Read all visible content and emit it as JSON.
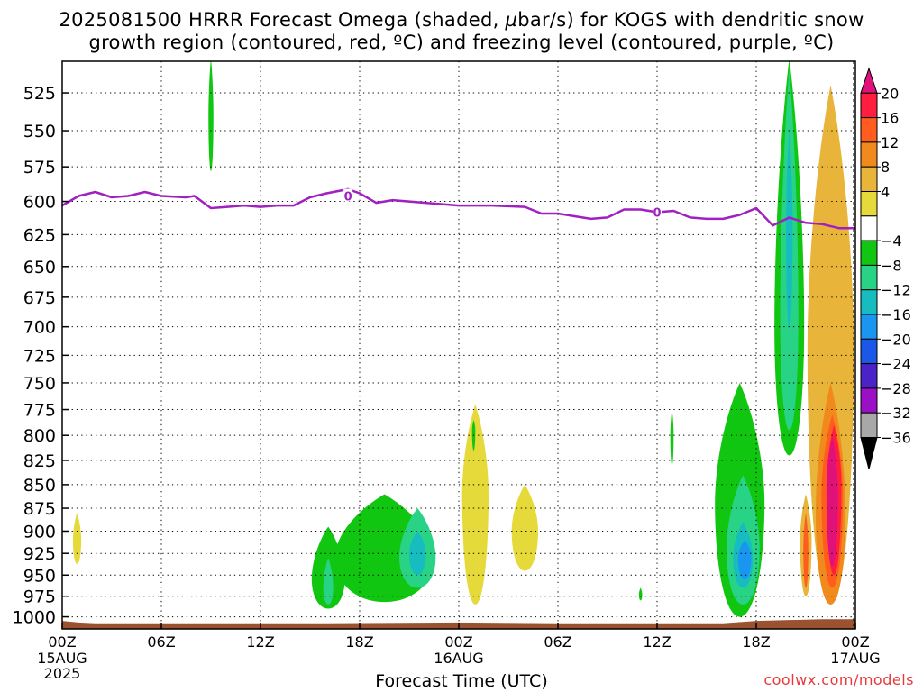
{
  "title": {
    "line1_pre": "2025081500 HRRR Forecast Omega (shaded, ",
    "line1_mu": "µ",
    "line1_post": "bar/s) for KOGS with dendritic snow",
    "line2": "growth region (contoured, red, ºC) and freezing level (contoured, purple, ºC)"
  },
  "xlabel": "Forecast Time (UTC)",
  "credit": "coolwx.com/models",
  "colors": {
    "freezing_level": "#a020c0",
    "terrain": "#9c5230",
    "grid": "#000000"
  },
  "chart_data": {
    "type": "heatmap",
    "title": "2025081500 HRRR Forecast Omega (shaded, µbar/s) for KOGS with dendritic snow growth region (contoured, red, ºC) and freezing level (contoured, purple, ºC)",
    "xlabel": "Forecast Time (UTC)",
    "ylabel": "",
    "x_unit": "forecast hour",
    "xlim": [
      0,
      48
    ],
    "ylim": [
      1015,
      505
    ],
    "y_scale": "log-pressure (inverted)",
    "grid": true,
    "x_ticks": [
      {
        "hour": 0,
        "label": "00Z",
        "sub": [
          "15AUG",
          "2025"
        ]
      },
      {
        "hour": 6,
        "label": "06Z",
        "sub": []
      },
      {
        "hour": 12,
        "label": "12Z",
        "sub": []
      },
      {
        "hour": 18,
        "label": "18Z",
        "sub": []
      },
      {
        "hour": 24,
        "label": "00Z",
        "sub": [
          "16AUG"
        ]
      },
      {
        "hour": 30,
        "label": "06Z",
        "sub": []
      },
      {
        "hour": 36,
        "label": "12Z",
        "sub": []
      },
      {
        "hour": 42,
        "label": "18Z",
        "sub": []
      },
      {
        "hour": 48,
        "label": "00Z",
        "sub": [
          "17AUG"
        ]
      }
    ],
    "y_ticks": [
      525,
      550,
      575,
      600,
      625,
      650,
      675,
      700,
      725,
      750,
      775,
      800,
      825,
      850,
      875,
      900,
      925,
      950,
      975,
      1000
    ],
    "colorbar": {
      "labels": [
        20,
        16,
        12,
        8,
        4,
        -4,
        -8,
        -12,
        -16,
        -20,
        -24,
        -28,
        -32,
        -36
      ],
      "bins": [
        {
          "color": "#e0127a",
          "range": [
            20,
            null
          ],
          "shape": "arrow-up"
        },
        {
          "color": "#ff1e40",
          "range": [
            16,
            20
          ]
        },
        {
          "color": "#ff5c1e",
          "range": [
            12,
            16
          ]
        },
        {
          "color": "#f08a1c",
          "range": [
            8,
            12
          ]
        },
        {
          "color": "#e8b43a",
          "range": [
            4,
            8
          ]
        },
        {
          "color": "#e6d93a",
          "range": [
            0,
            4
          ]
        },
        {
          "color": "#ffffff",
          "range": [
            -4,
            0
          ]
        },
        {
          "color": "#11c611",
          "range": [
            -8,
            -4
          ]
        },
        {
          "color": "#28d386",
          "range": [
            -12,
            -8
          ]
        },
        {
          "color": "#16bcc0",
          "range": [
            -16,
            -12
          ]
        },
        {
          "color": "#1a96f0",
          "range": [
            -20,
            -16
          ]
        },
        {
          "color": "#1c58e8",
          "range": [
            -24,
            -20
          ]
        },
        {
          "color": "#4a22c8",
          "range": [
            -28,
            -24
          ]
        },
        {
          "color": "#9a10c4",
          "range": [
            -32,
            -28
          ]
        },
        {
          "color": "#a8a8a8",
          "range": [
            -36,
            -32
          ]
        },
        {
          "color": "#000000",
          "range": [
            null,
            -36
          ],
          "shape": "arrow-down"
        }
      ]
    },
    "freezing_level": {
      "label": "0",
      "label_points": [
        [
          17.3,
          596
        ],
        [
          36.0,
          608
        ]
      ],
      "points": [
        [
          0,
          603
        ],
        [
          1,
          596
        ],
        [
          2,
          593
        ],
        [
          3,
          597
        ],
        [
          4,
          596
        ],
        [
          5,
          593
        ],
        [
          6,
          596
        ],
        [
          7.5,
          597
        ],
        [
          8,
          596
        ],
        [
          9,
          605
        ],
        [
          10,
          604
        ],
        [
          11,
          603
        ],
        [
          12,
          604
        ],
        [
          13,
          603
        ],
        [
          14,
          603
        ],
        [
          15,
          597
        ],
        [
          16,
          594
        ],
        [
          17.3,
          591
        ],
        [
          18,
          594
        ],
        [
          19,
          601
        ],
        [
          20,
          599
        ],
        [
          22,
          601
        ],
        [
          24,
          603
        ],
        [
          26,
          603
        ],
        [
          28,
          604
        ],
        [
          29,
          609
        ],
        [
          30,
          609
        ],
        [
          31,
          611
        ],
        [
          32,
          613
        ],
        [
          33,
          612
        ],
        [
          34,
          606
        ],
        [
          35,
          606
        ],
        [
          36,
          608
        ],
        [
          37,
          607
        ],
        [
          38,
          612
        ],
        [
          39,
          613
        ],
        [
          40,
          613
        ],
        [
          41,
          610
        ],
        [
          42,
          605
        ],
        [
          43,
          618
        ],
        [
          44,
          612
        ],
        [
          45,
          616
        ],
        [
          46,
          617
        ],
        [
          47,
          620
        ],
        [
          48,
          620
        ]
      ]
    },
    "terrain_surface_hPa": [
      [
        0,
        1005
      ],
      [
        1,
        1007
      ],
      [
        2,
        1008
      ],
      [
        8,
        1008
      ],
      [
        16,
        1008
      ],
      [
        24,
        1007
      ],
      [
        30,
        1008
      ],
      [
        40,
        1008
      ],
      [
        42,
        1005
      ],
      [
        44,
        1004
      ],
      [
        46,
        1003
      ],
      [
        48,
        1003
      ]
    ],
    "omega_regions": [
      {
        "value": -6,
        "center": [
          9.0,
          540
        ],
        "width": 0.3,
        "top": 503,
        "bottom": 578
      },
      {
        "value": 2,
        "center": [
          0.9,
          910
        ],
        "width": 0.5,
        "top": 880,
        "bottom": 937
      },
      {
        "value": -6,
        "center": [
          16.1,
          955
        ],
        "width": 2.0,
        "top": 895,
        "bottom": 990
      },
      {
        "value": -10,
        "center": [
          16.1,
          965
        ],
        "width": 0.6,
        "top": 930,
        "bottom": 985
      },
      {
        "value": -6,
        "center": [
          19.5,
          930
        ],
        "width": 6.0,
        "top": 860,
        "bottom": 982
      },
      {
        "value": -10,
        "center": [
          21.5,
          930
        ],
        "width": 2.2,
        "top": 875,
        "bottom": 965
      },
      {
        "value": -14,
        "center": [
          21.5,
          925
        ],
        "width": 1.0,
        "top": 900,
        "bottom": 950
      },
      {
        "value": 2,
        "center": [
          25.0,
          860
        ],
        "width": 1.6,
        "top": 770,
        "bottom": 985
      },
      {
        "value": -6,
        "center": [
          24.9,
          795
        ],
        "width": 0.2,
        "top": 785,
        "bottom": 815
      },
      {
        "value": 2,
        "center": [
          28.0,
          900
        ],
        "width": 1.6,
        "top": 850,
        "bottom": 945
      },
      {
        "value": -6,
        "center": [
          35.0,
          973
        ],
        "width": 0.2,
        "top": 965,
        "bottom": 980
      },
      {
        "value": -6,
        "center": [
          36.9,
          800
        ],
        "width": 0.2,
        "top": 775,
        "bottom": 830
      },
      {
        "value": -6,
        "center": [
          41.0,
          870
        ],
        "width": 3.0,
        "top": 750,
        "bottom": 1000
      },
      {
        "value": -10,
        "center": [
          41.2,
          920
        ],
        "width": 2.0,
        "top": 840,
        "bottom": 985
      },
      {
        "value": -14,
        "center": [
          41.2,
          930
        ],
        "width": 1.2,
        "top": 890,
        "bottom": 965
      },
      {
        "value": -18,
        "center": [
          41.3,
          930
        ],
        "width": 0.8,
        "top": 910,
        "bottom": 955
      },
      {
        "value": -6,
        "center": [
          44.0,
          700
        ],
        "width": 1.8,
        "top": 503,
        "bottom": 820
      },
      {
        "value": -12,
        "center": [
          44.0,
          690
        ],
        "width": 1.1,
        "top": 510,
        "bottom": 795
      },
      {
        "value": -16,
        "center": [
          44.0,
          620
        ],
        "width": 0.4,
        "top": 550,
        "bottom": 700
      },
      {
        "value": 4,
        "center": [
          46.5,
          720
        ],
        "width": 2.8,
        "top": 520,
        "bottom": 985
      },
      {
        "value": 10,
        "center": [
          46.5,
          880
        ],
        "width": 1.8,
        "top": 750,
        "bottom": 985
      },
      {
        "value": 14,
        "center": [
          46.6,
          860
        ],
        "width": 1.3,
        "top": 780,
        "bottom": 965
      },
      {
        "value": 18,
        "center": [
          46.7,
          850
        ],
        "width": 0.9,
        "top": 790,
        "bottom": 950
      },
      {
        "value": 22,
        "center": [
          46.6,
          860
        ],
        "width": 0.7,
        "top": 800,
        "bottom": 940
      },
      {
        "value": 4,
        "center": [
          45.0,
          910
        ],
        "width": 0.7,
        "top": 860,
        "bottom": 975
      },
      {
        "value": 12,
        "center": [
          45.0,
          920
        ],
        "width": 0.3,
        "top": 880,
        "bottom": 965
      }
    ]
  }
}
